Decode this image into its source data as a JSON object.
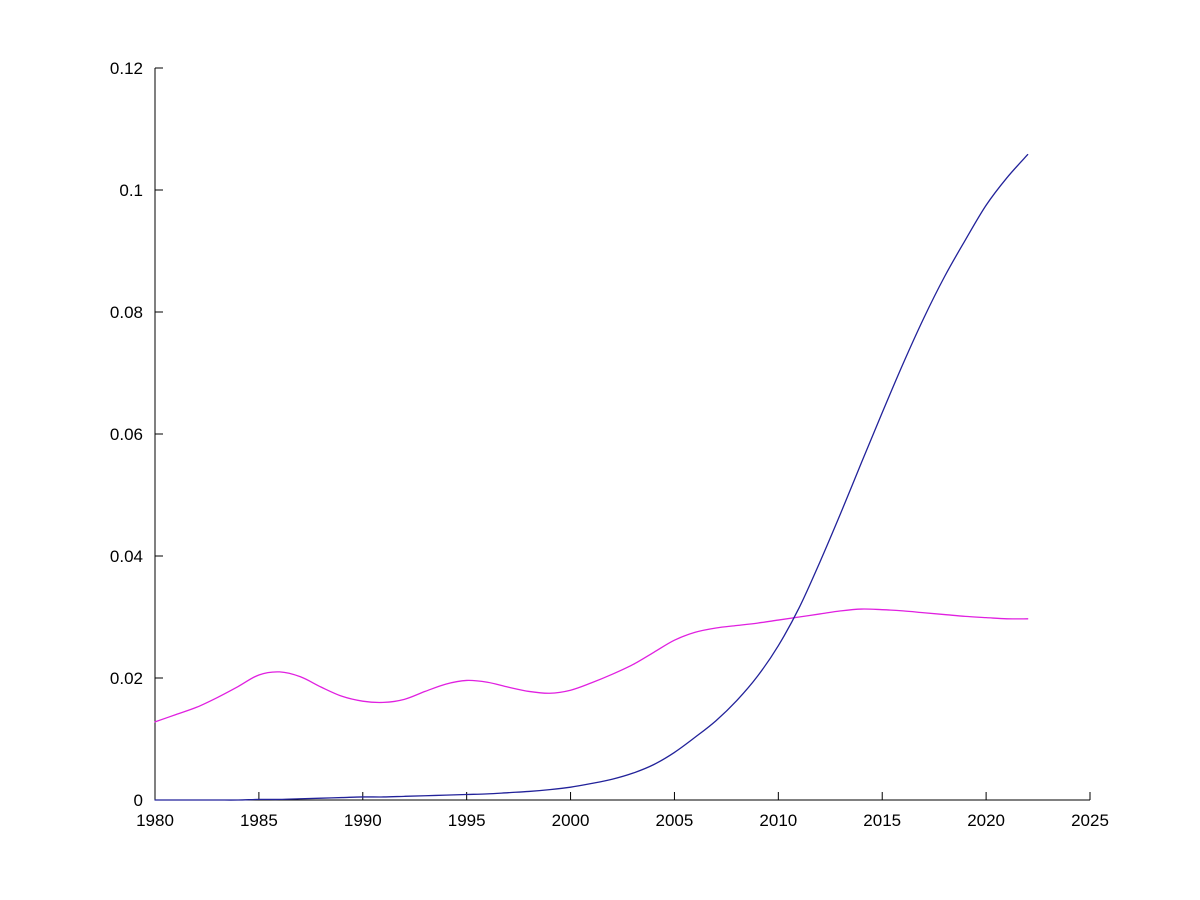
{
  "figure": {
    "background": "#ffffff",
    "axis_color": "#000000"
  },
  "chart_data": {
    "type": "line",
    "title": "",
    "xlabel": "",
    "ylabel": "",
    "xlim": [
      1980,
      2025
    ],
    "ylim": [
      0,
      0.12
    ],
    "grid": false,
    "legend": null,
    "x_ticks": [
      1980,
      1985,
      1990,
      1995,
      2000,
      2005,
      2010,
      2015,
      2020,
      2025
    ],
    "x_tick_labels": [
      "1980",
      "1985",
      "1990",
      "1995",
      "2000",
      "2005",
      "2010",
      "2015",
      "2020",
      "2025"
    ],
    "y_ticks": [
      0,
      0.02,
      0.04,
      0.06,
      0.08,
      0.1,
      0.12
    ],
    "y_tick_labels": [
      "0",
      "0.02",
      "0.04",
      "0.06",
      "0.08",
      "0.1",
      "0.12"
    ],
    "x": [
      1980,
      1981,
      1982,
      1983,
      1984,
      1985,
      1986,
      1987,
      1988,
      1989,
      1990,
      1991,
      1992,
      1993,
      1994,
      1995,
      1996,
      1997,
      1998,
      1999,
      2000,
      2001,
      2002,
      2003,
      2004,
      2005,
      2006,
      2007,
      2008,
      2009,
      2010,
      2011,
      2012,
      2013,
      2014,
      2015,
      2016,
      2017,
      2018,
      2019,
      2020,
      2021,
      2022
    ],
    "series": [
      {
        "name": "magenta-series",
        "color": "#e020e0",
        "values": [
          0.0128,
          0.014,
          0.0152,
          0.0168,
          0.0186,
          0.0205,
          0.021,
          0.0202,
          0.0185,
          0.017,
          0.0162,
          0.016,
          0.0165,
          0.0178,
          0.019,
          0.0196,
          0.0193,
          0.0185,
          0.0178,
          0.0175,
          0.018,
          0.0192,
          0.0206,
          0.0222,
          0.0242,
          0.0262,
          0.0275,
          0.0282,
          0.0286,
          0.029,
          0.0295,
          0.03,
          0.0305,
          0.031,
          0.0313,
          0.0312,
          0.031,
          0.0307,
          0.0304,
          0.0301,
          0.0299,
          0.0297,
          0.0297
        ]
      },
      {
        "name": "dark-blue-series",
        "color": "#22229a",
        "values": [
          0.0,
          0.0,
          0.0,
          0.0,
          0.0,
          0.0001,
          0.0001,
          0.0002,
          0.0003,
          0.0004,
          0.0005,
          0.0005,
          0.0006,
          0.0007,
          0.0008,
          0.0009,
          0.001,
          0.0012,
          0.0014,
          0.0017,
          0.0021,
          0.0027,
          0.0034,
          0.0044,
          0.0058,
          0.0078,
          0.0103,
          0.013,
          0.0163,
          0.0203,
          0.0253,
          0.0315,
          0.039,
          0.047,
          0.0553,
          0.0635,
          0.0715,
          0.079,
          0.0858,
          0.0918,
          0.0975,
          0.102,
          0.1058
        ]
      }
    ]
  }
}
